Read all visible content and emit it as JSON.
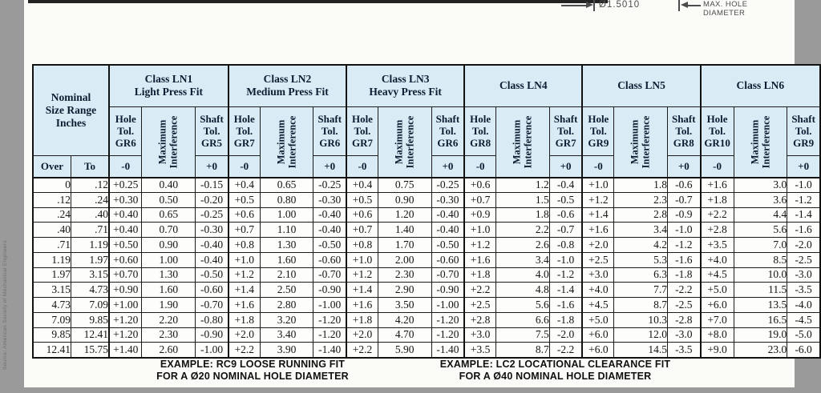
{
  "colors": {
    "surround_bg": "#9a9a9a",
    "page_bg": "#fbfbf8",
    "header_bg": "#d9ebf4",
    "line": "#1c1c1c"
  },
  "top_annotation": {
    "dimension": "Ø1.5010",
    "label": "MAX. HOLE\nDIAMETER"
  },
  "source_note": "Source: American Society of Mechanical Engineers",
  "table": {
    "corner": "Nominal\nSize Range\nInches",
    "over": "Over",
    "to": "To",
    "interference": {
      "line1": "Maximum",
      "line2": "Interference"
    },
    "classes": [
      {
        "title": "Class LN1",
        "subtitle": "Light Press Fit",
        "hole": "Hole\nTol.\nGR6",
        "shaft": "Shaft\nTol.\nGR5",
        "hole_sign": "-0",
        "shaft_sign": "+0"
      },
      {
        "title": "Class LN2",
        "subtitle": "Medium Press Fit",
        "hole": "Hole\nTol.\nGR7",
        "shaft": "Shaft\nTol.\nGR6",
        "hole_sign": "-0",
        "shaft_sign": "+0"
      },
      {
        "title": "Class LN3",
        "subtitle": "Heavy Press Fit",
        "hole": "Hole\nTol.\nGR7",
        "shaft": "Shaft\nTol.\nGR6",
        "hole_sign": "-0",
        "shaft_sign": "+0"
      },
      {
        "title": "Class LN4",
        "subtitle": "",
        "hole": "Hole\nTol.\nGR8",
        "shaft": "Shaft\nTol.\nGR7",
        "hole_sign": "-0",
        "shaft_sign": "+0"
      },
      {
        "title": "Class LN5",
        "subtitle": "",
        "hole": "Hole\nTol.\nGR9",
        "shaft": "Shaft\nTol.\nGR8",
        "hole_sign": "-0",
        "shaft_sign": "+0"
      },
      {
        "title": "Class LN6",
        "subtitle": "",
        "hole": "Hole\nTol.\nGR10",
        "shaft": "Shaft\nTol.\nGR9",
        "hole_sign": "-0",
        "shaft_sign": "+0"
      }
    ],
    "rows": [
      [
        "0",
        ".12",
        "+0.25",
        "0.40",
        "-0.15",
        "+0.4",
        "0.65",
        "-0.25",
        "+0.4",
        "0.75",
        "-0.25",
        "+0.6",
        "1.2",
        "-0.4",
        "+1.0",
        "1.8",
        "-0.6",
        "+1.6",
        "3.0",
        "-1.0"
      ],
      [
        ".12",
        ".24",
        "+0.30",
        "0.50",
        "-0.20",
        "+0.5",
        "0.80",
        "-0.30",
        "+0.5",
        "0.90",
        "-0.30",
        "+0.7",
        "1.5",
        "-0.5",
        "+1.2",
        "2.3",
        "-0.7",
        "+1.8",
        "3.6",
        "-1.2"
      ],
      [
        ".24",
        ".40",
        "+0.40",
        "0.65",
        "-0.25",
        "+0.6",
        "1.00",
        "-0.40",
        "+0.6",
        "1.20",
        "-0.40",
        "+0.9",
        "1.8",
        "-0.6",
        "+1.4",
        "2.8",
        "-0.9",
        "+2.2",
        "4.4",
        "-1.4"
      ],
      [
        ".40",
        ".71",
        "+0.40",
        "0.70",
        "-0.30",
        "+0.7",
        "1.10",
        "-0.40",
        "+0.7",
        "1.40",
        "-0.40",
        "+1.0",
        "2.2",
        "-0.7",
        "+1.6",
        "3.4",
        "-1.0",
        "+2.8",
        "5.6",
        "-1.6"
      ],
      [
        ".71",
        "1.19",
        "+0.50",
        "0.90",
        "-0.40",
        "+0.8",
        "1.30",
        "-0.50",
        "+0.8",
        "1.70",
        "-0.50",
        "+1.2",
        "2.6",
        "-0.8",
        "+2.0",
        "4.2",
        "-1.2",
        "+3.5",
        "7.0",
        "-2.0"
      ],
      [
        "1.19",
        "1.97",
        "+0.60",
        "1.00",
        "-0.40",
        "+1.0",
        "1.60",
        "-0.60",
        "+1.0",
        "2.00",
        "-0.60",
        "+1.6",
        "3.4",
        "-1.0",
        "+2.5",
        "5.3",
        "-1.6",
        "+4.0",
        "8.5",
        "-2.5"
      ],
      [
        "1.97",
        "3.15",
        "+0.70",
        "1.30",
        "-0.50",
        "+1.2",
        "2.10",
        "-0.70",
        "+1.2",
        "2.30",
        "-0.70",
        "+1.8",
        "4.0",
        "-1.2",
        "+3.0",
        "6.3",
        "-1.8",
        "+4.5",
        "10.0",
        "-3.0"
      ],
      [
        "3.15",
        "4.73",
        "+0.90",
        "1.60",
        "-0.60",
        "+1.4",
        "2.50",
        "-0.90",
        "+1.4",
        "2.90",
        "-0.90",
        "+2.2",
        "4.8",
        "-1.4",
        "+4.0",
        "7.7",
        "-2.2",
        "+5.0",
        "11.5",
        "-3.5"
      ],
      [
        "4.73",
        "7.09",
        "+1.00",
        "1.90",
        "-0.70",
        "+1.6",
        "2.80",
        "-1.00",
        "+1.6",
        "3.50",
        "-1.00",
        "+2.5",
        "5.6",
        "-1.6",
        "+4.5",
        "8.7",
        "-2.5",
        "+6.0",
        "13.5",
        "-4.0"
      ],
      [
        "7.09",
        "9.85",
        "+1.20",
        "2.20",
        "-0.80",
        "+1.8",
        "3.20",
        "-1.20",
        "+1.8",
        "4.20",
        "-1.20",
        "+2.8",
        "6.6",
        "-1.8",
        "+5.0",
        "10.3",
        "-2.8",
        "+7.0",
        "16.5",
        "-4.5"
      ],
      [
        "9.85",
        "12.41",
        "+1.20",
        "2.30",
        "-0.90",
        "+2.0",
        "3.40",
        "-1.20",
        "+2.0",
        "4.70",
        "-1.20",
        "+3.0",
        "7.5",
        "-2.0",
        "+6.0",
        "12.0",
        "-3.0",
        "+8.0",
        "19.0",
        "-5.0"
      ],
      [
        "12.41",
        "15.75",
        "+1.40",
        "2.60",
        "-1.00",
        "+2.2",
        "3.90",
        "-1.40",
        "+2.2",
        "5.90",
        "-1.40",
        "+3.5",
        "8.7",
        "-2.2",
        "+6.0",
        "14.5",
        "-3.5",
        "+9.0",
        "23.0",
        "-6.0"
      ]
    ]
  },
  "examples": [
    {
      "line1": "EXAMPLE: RC9 LOOSE RUNNING FIT",
      "line2": "FOR A Ø20 NOMINAL HOLE DIAMETER"
    },
    {
      "line1": "EXAMPLE: LC2 LOCATIONAL CLEARANCE FIT",
      "line2": "FOR A Ø40 NOMINAL HOLE DIAMETER"
    }
  ]
}
